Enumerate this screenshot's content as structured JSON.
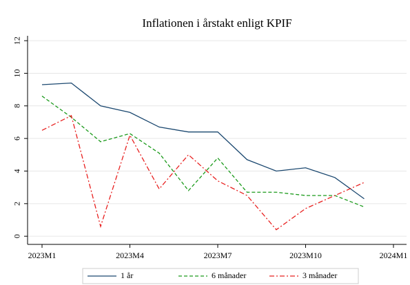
{
  "chart_data": {
    "type": "line",
    "title": "Inflationen i årstakt enligt KPIF",
    "categories": [
      "2023M1",
      null,
      null,
      "2023M4",
      null,
      null,
      "2023M7",
      null,
      null,
      "2023M10",
      null,
      null,
      "2024M1"
    ],
    "series": [
      {
        "name": "1 år",
        "color": "#1a476f",
        "dash": "solid",
        "values": [
          9.3,
          9.4,
          8.0,
          7.6,
          6.7,
          6.4,
          6.4,
          4.7,
          4.0,
          4.2,
          3.6,
          2.3,
          null
        ]
      },
      {
        "name": "6 månader",
        "color": "#1a9a1a",
        "dash": "dashed",
        "values": [
          8.6,
          7.3,
          5.8,
          6.3,
          5.1,
          2.8,
          4.8,
          2.7,
          2.7,
          2.5,
          2.5,
          1.8,
          null
        ]
      },
      {
        "name": "3 månader",
        "color": "#e8201f",
        "dash": "dashdot",
        "values": [
          6.5,
          7.4,
          0.6,
          6.2,
          2.9,
          5.0,
          3.4,
          2.5,
          0.4,
          1.7,
          2.5,
          3.3,
          null
        ]
      }
    ],
    "ylim": [
      -0.5,
      12.3
    ],
    "yticks": [
      0,
      2,
      4,
      6,
      8,
      10,
      12
    ],
    "grid": true,
    "legend": "bottom"
  }
}
